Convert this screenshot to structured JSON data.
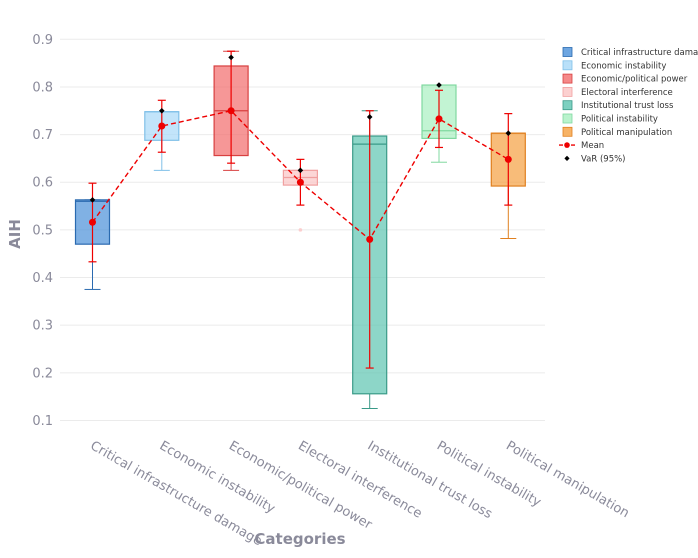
{
  "chart_data": {
    "type": "box",
    "xlabel": "Categories",
    "ylabel": "AIH",
    "ylim": [
      0.08,
      0.93
    ],
    "yticks": [
      0.1,
      0.2,
      0.3,
      0.4,
      0.5,
      0.6,
      0.7,
      0.8,
      0.9
    ],
    "grid": true,
    "legend_position": "top-right",
    "categories": [
      "Critical infrastructure damage",
      "Economic instability",
      "Economic/political power",
      "Electoral interference",
      "Institutional trust loss",
      "Political instability",
      "Political manipulation"
    ],
    "legend_labels": [
      "Critical infrastructure damage",
      "Economic instability",
      "Economic/political power",
      "Electoral interference",
      "Institutional trust loss",
      "Political instability",
      "Political manipulation"
    ],
    "colors": [
      "#4a90d9",
      "#a8d8f8",
      "#f26b6b",
      "#fbc4c4",
      "#5cc4b0",
      "#a8f0c0",
      "#f5a040"
    ],
    "edge_colors": [
      "#2a6ab0",
      "#80c0e8",
      "#d84040",
      "#f0a0a0",
      "#3a9a88",
      "#80d8a0",
      "#e08020"
    ],
    "boxes": [
      {
        "q1": 0.47,
        "median": 0.56,
        "q3": 0.563,
        "whisker_low": 0.375,
        "whisker_high": 0.563,
        "outliers": []
      },
      {
        "q1": 0.688,
        "median": 0.748,
        "q3": 0.748,
        "whisker_low": 0.625,
        "whisker_high": 0.748,
        "outliers": []
      },
      {
        "q1": 0.656,
        "median": 0.75,
        "q3": 0.844,
        "whisker_low": 0.625,
        "whisker_high": 0.875,
        "outliers": []
      },
      {
        "q1": 0.594,
        "median": 0.61,
        "q3": 0.625,
        "whisker_low": 0.594,
        "whisker_high": 0.625,
        "outliers": [
          0.5
        ]
      },
      {
        "q1": 0.156,
        "median": 0.68,
        "q3": 0.697,
        "whisker_low": 0.125,
        "whisker_high": 0.75,
        "outliers": []
      },
      {
        "q1": 0.692,
        "median": 0.708,
        "q3": 0.804,
        "whisker_low": 0.642,
        "whisker_high": 0.804,
        "outliers": []
      },
      {
        "q1": 0.592,
        "median": 0.703,
        "q3": 0.703,
        "whisker_low": 0.482,
        "whisker_high": 0.703,
        "outliers": []
      }
    ],
    "mean": {
      "label": "Mean",
      "color": "#ee0000",
      "values": [
        0.516,
        0.718,
        0.75,
        0.6,
        0.48,
        0.733,
        0.648
      ],
      "err_low": [
        0.433,
        0.663,
        0.64,
        0.552,
        0.21,
        0.673,
        0.552
      ],
      "err_high": [
        0.598,
        0.772,
        0.875,
        0.648,
        0.75,
        0.793,
        0.744
      ]
    },
    "var95": {
      "label": "VaR (95%)",
      "color": "#000000",
      "values": [
        0.563,
        0.75,
        0.862,
        0.625,
        0.737,
        0.804,
        0.703
      ]
    }
  }
}
